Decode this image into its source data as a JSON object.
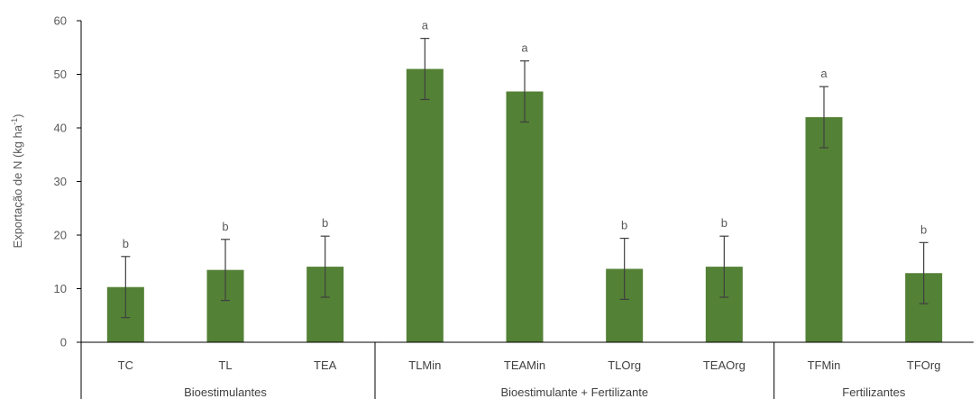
{
  "chart_data": {
    "type": "bar",
    "ylabel_main": "Exportação de N (kg ha",
    "ylabel_sup": "-1",
    "ylabel_close": ")",
    "ylim": [
      0,
      60
    ],
    "yticks": [
      "0",
      "10",
      "20",
      "30",
      "40",
      "50",
      "60"
    ],
    "categories": [
      "TC",
      "TL",
      "TEA",
      "TLMin",
      "TEAMin",
      "TLOrg",
      "TEAOrg",
      "TFMin",
      "TFOrg"
    ],
    "values": [
      10.3,
      13.5,
      14.1,
      51.0,
      46.8,
      13.7,
      14.1,
      42.0,
      12.9
    ],
    "errors": [
      5.7,
      5.7,
      5.7,
      5.7,
      5.7,
      5.7,
      5.7,
      5.7,
      5.7
    ],
    "significance": [
      "b",
      "b",
      "b",
      "a",
      "a",
      "b",
      "b",
      "a",
      "b"
    ],
    "groups": [
      {
        "label": "Bioestimulantes",
        "start": 0,
        "end": 2
      },
      {
        "label": "Bioestimulante + Fertilizante",
        "start": 3,
        "end": 6
      },
      {
        "label": "Fertilizantes",
        "start": 7,
        "end": 8
      }
    ],
    "bar_color": "#538135",
    "grid": false,
    "legend": "none"
  }
}
